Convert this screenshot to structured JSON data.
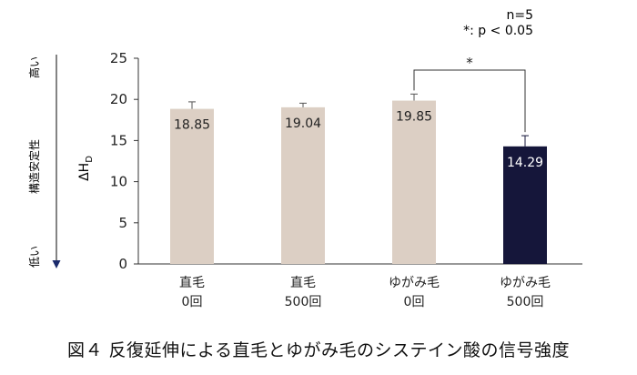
{
  "chart_data": {
    "type": "bar",
    "categories": [
      [
        "直毛",
        "0回"
      ],
      [
        "直毛",
        "500回"
      ],
      [
        "ゆがみ毛",
        "0回"
      ],
      [
        "ゆがみ毛",
        "500回"
      ]
    ],
    "values": [
      18.85,
      19.04,
      19.85,
      14.29
    ],
    "value_labels": [
      "18.85",
      "19.04",
      "19.85",
      "14.29"
    ],
    "error_bars": [
      0.85,
      0.5,
      0.8,
      1.3
    ],
    "ylabel": "ΔH",
    "ylabel_subscript": "D",
    "ylim": [
      0,
      25
    ],
    "yticks": [
      0,
      5,
      10,
      15,
      20,
      25
    ],
    "grid": false,
    "legend": "none",
    "annotations": {
      "n": "n=5",
      "significance_note": "*: p < 0.05",
      "significance_marker": "*",
      "significance_between": [
        2,
        3
      ]
    },
    "side_axis": {
      "label": "構造安定性",
      "high": "高い",
      "low": "低い"
    }
  },
  "colors": {
    "bar_default": "#dccfc4",
    "bar_highlight": "#15163a",
    "text_default": "#222222",
    "text_highlight": "#ffffff",
    "axis": "#333333"
  },
  "caption": "図４ 反復延伸による直毛とゆがみ毛のシステイン酸の信号強度"
}
